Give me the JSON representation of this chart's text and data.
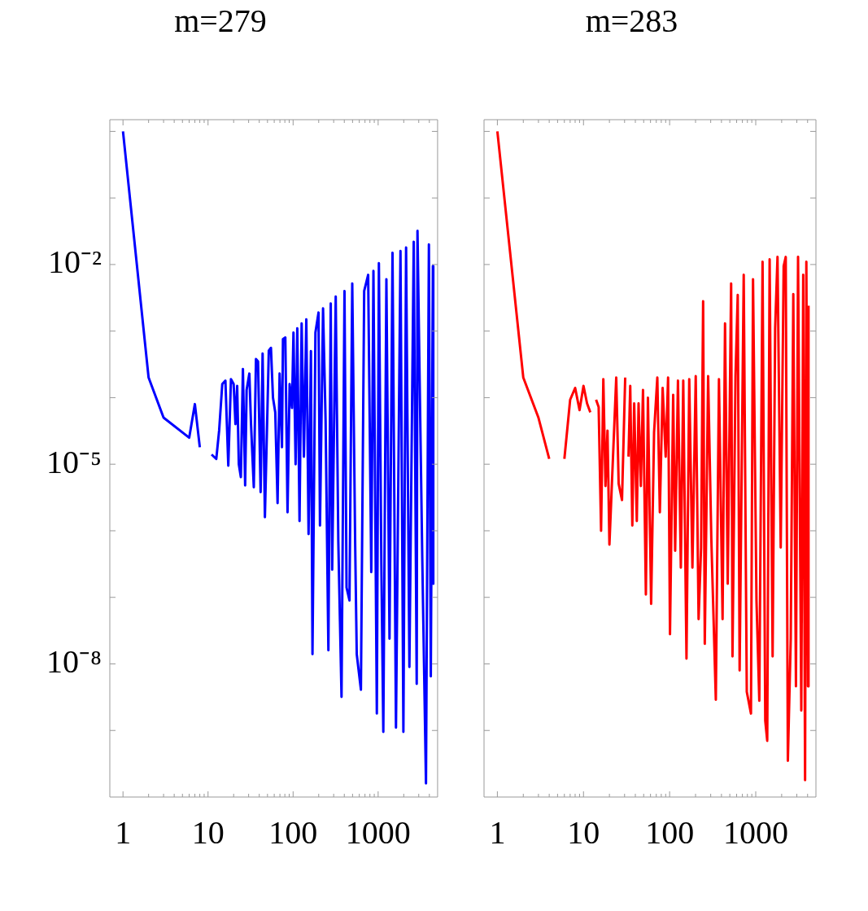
{
  "chart_data": [
    {
      "type": "line",
      "title": "m=279",
      "log": "xy",
      "xlim": [
        0.72,
        5000
      ],
      "ylim": [
        1e-10,
        1.5
      ],
      "xticks": [
        1,
        {
          "value": 2,
          "label": null
        },
        {
          "value": 3,
          "label": null
        },
        {
          "value": 4,
          "label": null
        },
        {
          "value": 5,
          "label": null
        },
        {
          "value": 6,
          "label": null
        },
        {
          "value": 7,
          "label": null
        },
        {
          "value": 8,
          "label": null
        },
        {
          "value": 9,
          "label": null
        },
        10,
        {
          "value": 20,
          "label": null
        },
        {
          "value": 30,
          "label": null
        },
        {
          "value": 40,
          "label": null
        },
        {
          "value": 50,
          "label": null
        },
        {
          "value": 60,
          "label": null
        },
        {
          "value": 70,
          "label": null
        },
        {
          "value": 80,
          "label": null
        },
        {
          "value": 90,
          "label": null
        },
        100,
        {
          "value": 200,
          "label": null
        },
        {
          "value": 300,
          "label": null
        },
        {
          "value": 400,
          "label": null
        },
        {
          "value": 500,
          "label": null
        },
        {
          "value": 600,
          "label": null
        },
        {
          "value": 700,
          "label": null
        },
        {
          "value": 800,
          "label": null
        },
        {
          "value": 900,
          "label": null
        },
        1000,
        {
          "value": 2000,
          "label": null
        },
        {
          "value": 3000,
          "label": null
        },
        {
          "value": 4000,
          "label": null
        }
      ],
      "yticks": [
        {
          "value": 1,
          "label": null
        },
        {
          "value": 0.1,
          "label": null
        },
        {
          "value": 0.01,
          "label": "10⁻²"
        },
        {
          "value": 0.001,
          "label": null
        },
        {
          "value": 0.0001,
          "label": null
        },
        {
          "value": 1e-05,
          "label": "10⁻⁵"
        },
        {
          "value": 1e-06,
          "label": null
        },
        {
          "value": 1e-07,
          "label": null
        },
        {
          "value": 1e-08,
          "label": "10⁻⁸"
        },
        {
          "value": 1e-09,
          "label": null
        }
      ],
      "x": [
        1,
        2,
        3,
        6,
        7,
        8,
        9,
        11,
        12.5,
        13.5,
        14.7,
        16,
        17.3,
        18.6,
        20,
        21,
        22,
        23,
        24.3,
        25.7,
        27.3,
        28.4,
        30.6,
        32,
        34.5,
        36.6,
        38.7,
        41.5,
        43.8,
        46.6,
        49.2,
        51.8,
        54.9,
        58,
        61.7,
        65.7,
        69.4,
        74,
        76,
        81,
        86,
        91,
        97,
        101,
        107,
        112,
        119,
        126,
        134,
        143,
        152,
        162,
        169,
        183,
        199,
        207,
        225,
        241,
        260,
        277,
        288,
        317,
        340,
        371,
        402,
        425,
        460,
        496,
        537,
        560,
        627,
        685,
        763,
        830,
        880,
        965,
        1020,
        1090,
        1150,
        1250,
        1360,
        1475,
        1620,
        1830,
        1980,
        2130,
        2330,
        2620,
        2840,
        2900,
        3300,
        3650,
        3950,
        4160,
        4400,
        4450
      ],
      "series": [
        {
          "color": "#0000ff",
          "values": [
            1,
            0.0002,
            5e-05,
            2.5e-05,
            8e-05,
            1.8e-05,
            null,
            1.4e-05,
            1.2e-05,
            3.2e-05,
            0.00016,
            0.00018,
            9.5e-06,
            0.00019,
            0.00016,
            4e-05,
            0.00015,
            1e-05,
            6.4e-06,
            0.00027,
            4.8e-06,
            0.00013,
            0.00023,
            4e-05,
            4.5e-06,
            0.00038,
            0.00035,
            3.8e-06,
            0.00046,
            1.6e-06,
            3e-05,
            0.00051,
            0.00056,
            0.0001,
            6e-05,
            2.6e-06,
            0.00023,
            1.8e-05,
            0.00076,
            0.0008,
            1.9e-06,
            0.00016,
            7e-05,
            0.00095,
            1e-05,
            0.0011,
            1.4e-06,
            0.0013,
            1.3e-05,
            0.0015,
            8.9e-07,
            0.0005,
            1.4e-08,
            0.00095,
            0.0019,
            1.2e-06,
            0.0022,
            4.5e-05,
            1.6e-08,
            0.0026,
            2.6e-07,
            0.0033,
            7e-07,
            3.2e-09,
            0.004,
            1.4e-07,
            9e-08,
            0.0052,
            6e-07,
            1.4e-08,
            4.1e-09,
            0.004,
            0.007,
            2.4e-07,
            0.008,
            1.8e-09,
            0.0105,
            3.2e-07,
            9.5e-10,
            0.006,
            2.4e-08,
            0.015,
            1.1e-09,
            0.016,
            9.5e-10,
            0.018,
            9e-09,
            0.022,
            5e-09,
            0.032,
            4e-07,
            1.6e-10,
            0.02,
            6.5e-09,
            0.0095,
            1.6e-07
          ]
        }
      ]
    },
    {
      "type": "line",
      "title": "m=283",
      "log": "xy",
      "tick_labels": "x",
      "xlim": [
        0.72,
        5000
      ],
      "ylim": [
        1e-10,
        1.5
      ],
      "xticks": [
        1,
        {
          "value": 2,
          "label": null
        },
        {
          "value": 3,
          "label": null
        },
        {
          "value": 4,
          "label": null
        },
        {
          "value": 5,
          "label": null
        },
        {
          "value": 6,
          "label": null
        },
        {
          "value": 7,
          "label": null
        },
        {
          "value": 8,
          "label": null
        },
        {
          "value": 9,
          "label": null
        },
        10,
        {
          "value": 20,
          "label": null
        },
        {
          "value": 30,
          "label": null
        },
        {
          "value": 40,
          "label": null
        },
        {
          "value": 50,
          "label": null
        },
        {
          "value": 60,
          "label": null
        },
        {
          "value": 70,
          "label": null
        },
        {
          "value": 80,
          "label": null
        },
        {
          "value": 90,
          "label": null
        },
        100,
        {
          "value": 200,
          "label": null
        },
        {
          "value": 300,
          "label": null
        },
        {
          "value": 400,
          "label": null
        },
        {
          "value": 500,
          "label": null
        },
        {
          "value": 600,
          "label": null
        },
        {
          "value": 700,
          "label": null
        },
        {
          "value": 800,
          "label": null
        },
        {
          "value": 900,
          "label": null
        },
        1000,
        {
          "value": 2000,
          "label": null
        },
        {
          "value": 3000,
          "label": null
        },
        {
          "value": 4000,
          "label": null
        }
      ],
      "yticks": [
        {
          "value": 1,
          "label": null
        },
        {
          "value": 0.1,
          "label": null
        },
        {
          "value": 0.01,
          "label": null
        },
        {
          "value": 0.001,
          "label": null
        },
        {
          "value": 0.0001,
          "label": null
        },
        {
          "value": 1e-05,
          "label": null
        },
        {
          "value": 1e-06,
          "label": null
        },
        {
          "value": 1e-07,
          "label": null
        },
        {
          "value": 1e-08,
          "label": null
        },
        {
          "value": 1e-09,
          "label": null
        }
      ],
      "x": [
        1,
        2,
        3,
        4,
        5,
        6,
        7,
        8,
        9,
        10,
        11,
        12,
        13,
        14,
        15,
        16,
        17,
        18,
        19,
        20,
        24,
        25.6,
        28,
        30.5,
        32,
        33.3,
        34.9,
        36.9,
        38.8,
        41.6,
        43.6,
        46.3,
        49.1,
        53,
        56,
        61,
        66,
        72,
        77,
        83,
        90,
        96,
        101,
        110,
        116,
        125,
        135,
        144,
        157,
        169,
        184,
        201,
        217,
        232,
        245,
        256,
        280,
        305,
        344,
        374,
        412,
        440,
        473,
        518,
        537,
        582,
        618,
        650,
        725,
        787,
        880,
        930,
        1020,
        1100,
        1200,
        1290,
        1360,
        1450,
        1570,
        1680,
        1790,
        1950,
        2110,
        2230,
        2360,
        2550,
        2730,
        2930,
        3100,
        3380,
        3560,
        3740,
        3870,
        4040,
        4100
      ],
      "series": [
        {
          "color": "#ff0000",
          "values": [
            1,
            0.0002,
            5e-05,
            1.2e-05,
            null,
            1.2e-05,
            9.3e-05,
            0.00014,
            6.5e-05,
            0.00015,
            8.2e-05,
            6e-05,
            null,
            9.3e-05,
            7.2e-05,
            1e-06,
            0.00019,
            4.7e-06,
            3.2e-05,
            6.2e-07,
            0.0002,
            5.1e-06,
            2.9e-06,
            0.0002,
            null,
            1.3e-05,
            0.00015,
            1.2e-06,
            8.2e-05,
            1.4e-06,
            8.2e-05,
            4.7e-06,
            0.00013,
            1.1e-07,
            0.0001,
            8e-08,
            3e-05,
            0.0002,
            1.9e-06,
            0.00014,
            1.3e-05,
            0.0002,
            2.8e-08,
            0.00011,
            5e-07,
            0.00018,
            2.8e-07,
            0.00018,
            1.2e-08,
            0.00019,
            2.8e-07,
            0.00021,
            4.7e-08,
            5.6e-07,
            0.0028,
            2e-08,
            0.00021,
            7.6e-07,
            2.9e-09,
            0.00019,
            4.7e-08,
            0.0013,
            1.6e-07,
            0.0052,
            1.3e-08,
            0.00021,
            0.0035,
            8e-09,
            0.007,
            3.8e-09,
            1.8e-09,
            0.006,
            9e-08,
            2.8e-09,
            0.011,
            1.4e-09,
            7e-10,
            0.012,
            1.3e-08,
            0.0011,
            0.013,
            5.6e-07,
            0.0095,
            0.013,
            3.5e-10,
            2.4e-08,
            0.0036,
            4.6e-09,
            0.013,
            2e-09,
            0.007,
            1.8e-10,
            0.011,
            4.6e-09,
            0.0024
          ]
        }
      ]
    }
  ]
}
